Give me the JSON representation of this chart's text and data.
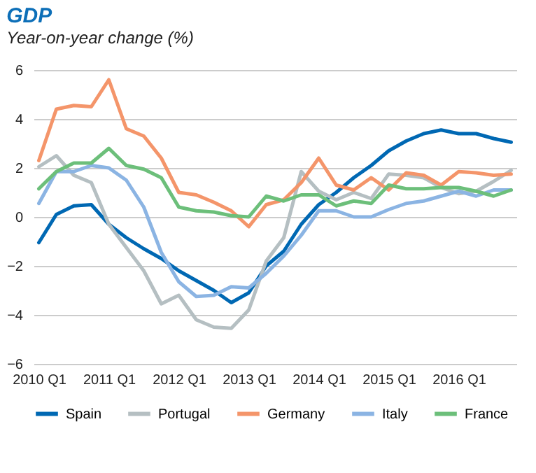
{
  "chart_data": {
    "type": "line",
    "title": "GDP",
    "subtitle": "Year-on-year change (%)",
    "categories": [
      "2010 Q1",
      null,
      null,
      null,
      "2011 Q1",
      null,
      null,
      null,
      "2012 Q1",
      null,
      null,
      null,
      "2013 Q1",
      null,
      null,
      null,
      "2014 Q1",
      null,
      null,
      null,
      "2015 Q1",
      null,
      null,
      null,
      "2016 Q1",
      null,
      null,
      null
    ],
    "series": [
      {
        "name": "Spain",
        "color": "#0068b3",
        "values": [
          -1.05,
          0.1,
          0.45,
          0.5,
          -0.3,
          -0.85,
          -1.3,
          -1.7,
          -2.2,
          -2.6,
          -3.0,
          -3.5,
          -3.1,
          -2.0,
          -1.4,
          -0.3,
          0.5,
          1.0,
          1.6,
          2.1,
          2.7,
          3.1,
          3.4,
          3.55,
          3.4,
          3.4,
          3.2,
          3.05
        ]
      },
      {
        "name": "Portugal",
        "color": "#b5bfc2",
        "values": [
          2.05,
          2.5,
          1.7,
          1.4,
          -0.3,
          -1.25,
          -2.2,
          -3.55,
          -3.2,
          -4.2,
          -4.5,
          -4.55,
          -3.8,
          -1.8,
          -0.85,
          1.85,
          1.05,
          0.7,
          1.0,
          0.75,
          1.75,
          1.7,
          1.6,
          1.2,
          0.95,
          1.05,
          1.45,
          1.9
        ]
      },
      {
        "name": "Germany",
        "color": "#f4956a",
        "values": [
          2.3,
          4.4,
          4.55,
          4.5,
          5.6,
          3.6,
          3.3,
          2.4,
          1.0,
          0.9,
          0.6,
          0.25,
          -0.4,
          0.5,
          0.7,
          1.4,
          2.4,
          1.3,
          1.1,
          1.6,
          1.1,
          1.8,
          1.7,
          1.3,
          1.85,
          1.8,
          1.7,
          1.75
        ]
      },
      {
        "name": "Italy",
        "color": "#8bb4e3",
        "values": [
          0.55,
          1.85,
          1.85,
          2.1,
          2.0,
          1.5,
          0.4,
          -1.45,
          -2.65,
          -3.25,
          -3.2,
          -2.85,
          -2.9,
          -2.3,
          -1.6,
          -0.75,
          0.25,
          0.25,
          0.0,
          0.0,
          0.3,
          0.55,
          0.65,
          0.85,
          1.05,
          0.85,
          1.1,
          1.1
        ]
      },
      {
        "name": "France",
        "color": "#6cbf7a",
        "values": [
          1.15,
          1.85,
          2.2,
          2.2,
          2.8,
          2.1,
          1.95,
          1.6,
          0.4,
          0.25,
          0.2,
          0.05,
          0.0,
          0.85,
          0.65,
          0.9,
          0.9,
          0.45,
          0.65,
          0.55,
          1.3,
          1.15,
          1.15,
          1.2,
          1.2,
          1.05,
          0.85,
          1.1
        ]
      }
    ],
    "ylim": [
      -6,
      6
    ],
    "yticks": [
      -6,
      -4,
      -2,
      0,
      2,
      4,
      6
    ],
    "grid": "y",
    "legend": "bottom",
    "marker": "none",
    "line_style": "solid"
  }
}
